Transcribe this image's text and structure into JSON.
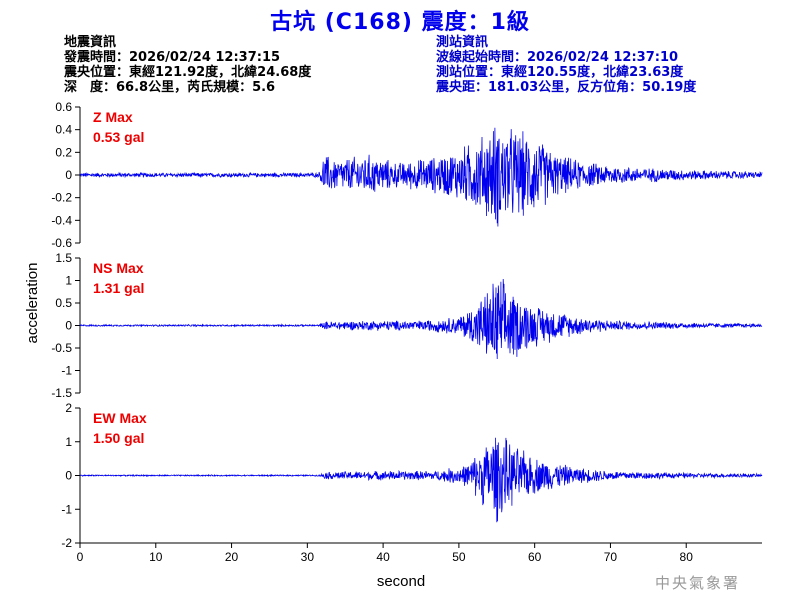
{
  "title": "古坑 (C168) 震度：1級",
  "event_info": {
    "heading": "地震資訊",
    "origin_time": "發震時間：2026/02/24 12:37:15",
    "epicenter": "震央位置：東經121.92度，北緯24.68度",
    "depth_magnitude": "深　度：66.8公里，芮氏規模：5.6"
  },
  "station_info": {
    "heading": "測站資訊",
    "wave_start": "波線起始時間：2026/02/24 12:37:10",
    "location": "測站位置：東經120.55度，北緯23.63度",
    "distance": "震央距：181.03公里，反方位角：50.19度"
  },
  "watermark": "中央氣象署",
  "chart_data": {
    "type": "line",
    "xlabel": "second",
    "ylabel": "acceleration",
    "xlim": [
      0,
      90
    ],
    "xticks": [
      0,
      10,
      20,
      30,
      40,
      50,
      60,
      70,
      80
    ],
    "line_color": "#0000ee",
    "label_color": "#ee0000",
    "panels": [
      {
        "name": "Z Max",
        "max_label": "0.53 gal",
        "ylim": [
          -0.6,
          0.6
        ],
        "yticks": [
          -0.6,
          -0.4,
          -0.2,
          0,
          0.2,
          0.4,
          0.6
        ],
        "ytick_labels": [
          "-0.6",
          "-0.4",
          "-0.2",
          "0",
          "0.2",
          "0.4",
          "0.6"
        ],
        "envelope": [
          [
            0,
            0.02
          ],
          [
            31.5,
            0.02
          ],
          [
            32.2,
            0.2
          ],
          [
            34,
            0.15
          ],
          [
            38,
            0.2
          ],
          [
            42,
            0.12
          ],
          [
            47,
            0.18
          ],
          [
            50,
            0.25
          ],
          [
            53,
            0.38
          ],
          [
            55,
            0.52
          ],
          [
            57,
            0.45
          ],
          [
            60,
            0.38
          ],
          [
            63,
            0.2
          ],
          [
            67,
            0.12
          ],
          [
            72,
            0.08
          ],
          [
            80,
            0.05
          ],
          [
            90,
            0.03
          ]
        ]
      },
      {
        "name": "NS Max",
        "max_label": "1.31 gal",
        "ylim": [
          -1.5,
          1.5
        ],
        "yticks": [
          -1.5,
          -1,
          -0.5,
          0,
          0.5,
          1,
          1.5
        ],
        "ytick_labels": [
          "-1.5",
          "-1",
          "-0.5",
          "0",
          "0.5",
          "1",
          "1.5"
        ],
        "envelope": [
          [
            0,
            0.02
          ],
          [
            31.5,
            0.02
          ],
          [
            32.5,
            0.1
          ],
          [
            38,
            0.12
          ],
          [
            45,
            0.12
          ],
          [
            50,
            0.22
          ],
          [
            52,
            0.5
          ],
          [
            54,
            0.9
          ],
          [
            55,
            1.28
          ],
          [
            57,
            0.85
          ],
          [
            60,
            0.5
          ],
          [
            65,
            0.25
          ],
          [
            70,
            0.12
          ],
          [
            80,
            0.07
          ],
          [
            90,
            0.04
          ]
        ]
      },
      {
        "name": "EW Max",
        "max_label": "1.50 gal",
        "ylim": [
          -2,
          2
        ],
        "yticks": [
          -2,
          -1,
          0,
          1,
          2
        ],
        "ytick_labels": [
          "-2",
          "-1",
          "0",
          "1",
          "2"
        ],
        "envelope": [
          [
            0,
            0.02
          ],
          [
            31.5,
            0.02
          ],
          [
            32.5,
            0.12
          ],
          [
            40,
            0.15
          ],
          [
            47,
            0.15
          ],
          [
            51,
            0.35
          ],
          [
            53,
            0.9
          ],
          [
            55,
            1.5
          ],
          [
            57,
            1.0
          ],
          [
            60,
            0.6
          ],
          [
            65,
            0.28
          ],
          [
            70,
            0.15
          ],
          [
            80,
            0.08
          ],
          [
            90,
            0.05
          ]
        ]
      }
    ]
  }
}
